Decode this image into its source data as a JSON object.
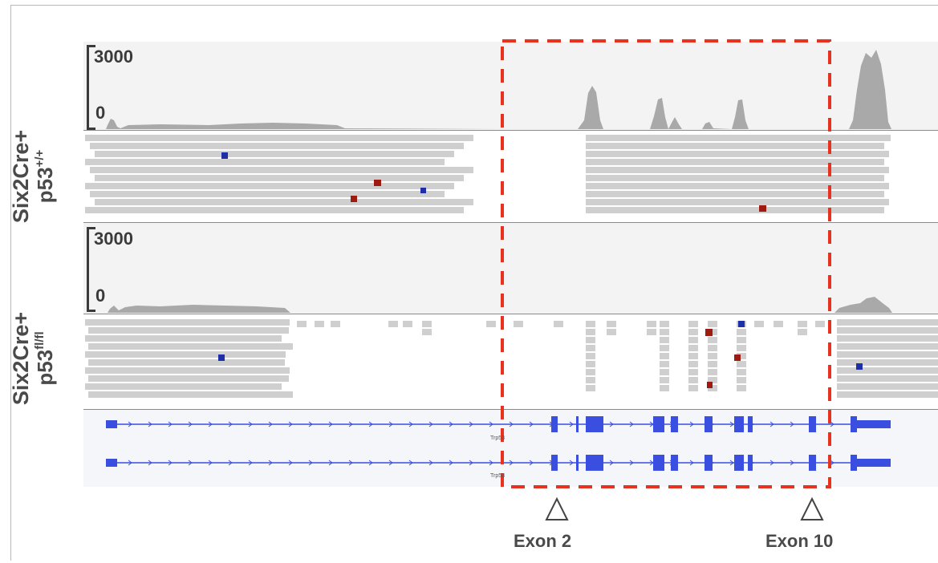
{
  "tracks": [
    {
      "id": "wt",
      "sample_name": "Six2Cre+",
      "genotype_base": "p53",
      "genotype_sup": "+/+",
      "scale_max": "3000",
      "scale_min": "0"
    },
    {
      "id": "flox",
      "sample_name": "Six2Cre+",
      "genotype_base": "p53",
      "genotype_sup": "fl/fl",
      "scale_max": "3000",
      "scale_min": "0"
    }
  ],
  "gene_track": {
    "gene_name": "Trp53",
    "gene_name_2": "Trp53"
  },
  "annotations": {
    "highlight_color": "#e8321e",
    "exon_markers": [
      {
        "label": "Exon 2"
      },
      {
        "label": "Exon 10"
      }
    ]
  },
  "colors": {
    "coverage": "#a9a9a9",
    "read": "#cfcfcf",
    "mismatch_blue": "#1f2fa8",
    "mismatch_red": "#9e1b12",
    "gene": "#3a4fe0"
  }
}
